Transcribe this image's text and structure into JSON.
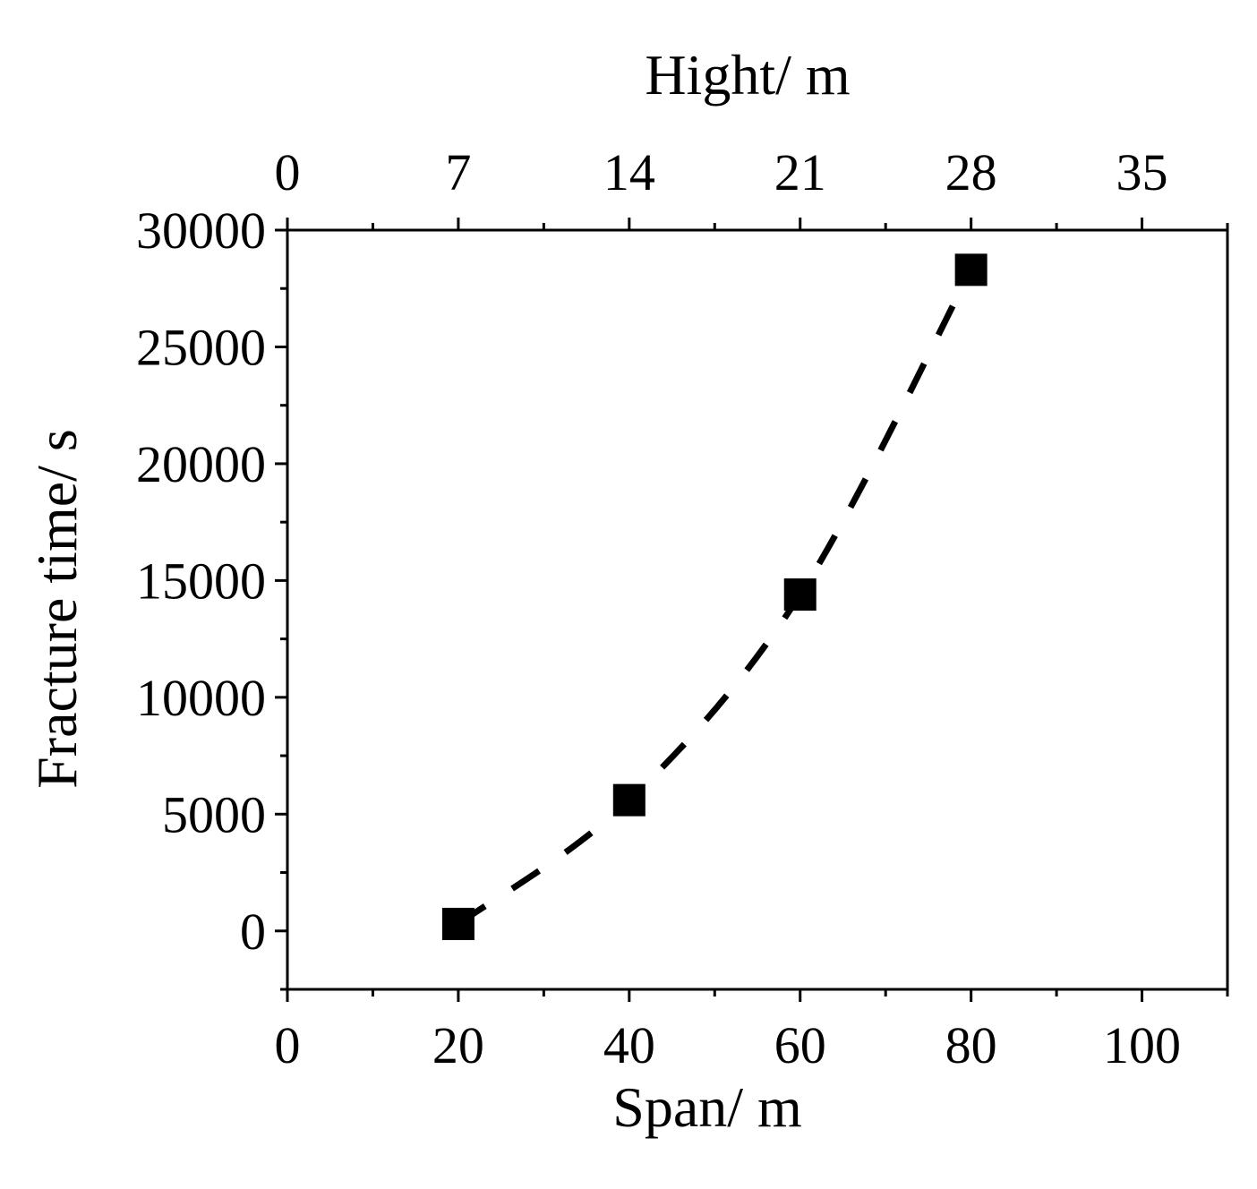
{
  "chart_data": {
    "type": "scatter",
    "xlabel": "Span/ m",
    "x2label": "Hight/ m",
    "ylabel": "Fracture time/ s",
    "xlim": [
      0,
      110
    ],
    "x2lim": [
      0,
      38.5
    ],
    "ylim": [
      -2500,
      30000
    ],
    "x_ticks": [
      "0",
      "20",
      "40",
      "60",
      "80",
      "100"
    ],
    "x2_ticks": [
      "0",
      "7",
      "14",
      "21",
      "28",
      "35"
    ],
    "y_ticks": [
      "0",
      "5000",
      "10000",
      "15000",
      "20000",
      "25000",
      "30000"
    ],
    "series": [
      {
        "marker": "square",
        "fit_line": "dashed",
        "points": [
          {
            "x": 20,
            "y": 300
          },
          {
            "x": 40,
            "y": 5600
          },
          {
            "x": 60,
            "y": 14400
          },
          {
            "x": 80,
            "y": 28300
          }
        ]
      }
    ],
    "grid": false,
    "colors": {
      "marker": "#000000",
      "line": "#000000",
      "axes": "#000000"
    }
  }
}
